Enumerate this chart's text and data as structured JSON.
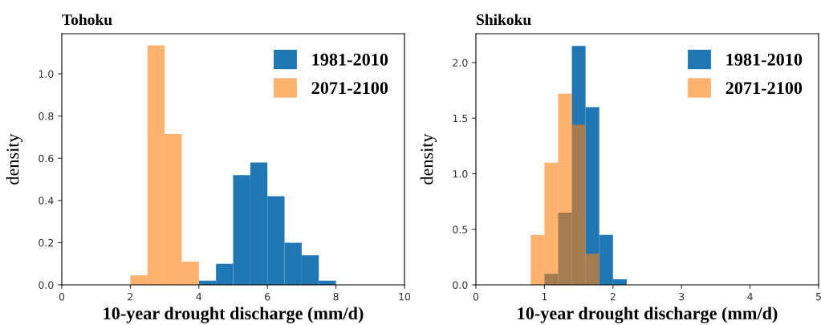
{
  "chart_data": [
    {
      "type": "histogram",
      "title": "Tohoku",
      "xlabel": "10-year drought discharge (mm/d)",
      "ylabel": "density",
      "xlim": [
        0,
        10
      ],
      "xticks": [
        0,
        2,
        4,
        6,
        8,
        10
      ],
      "ylim": [
        0,
        1.19
      ],
      "yticks": [
        {
          "value": 0,
          "label": "0.0"
        },
        0.2,
        0.4,
        0.6,
        0.8,
        {
          "value": 1,
          "label": "1.0"
        }
      ],
      "legend": "top right",
      "grid": false,
      "bins": [
        2,
        2.5,
        3,
        3.5,
        4,
        4.5,
        5,
        5.5,
        6,
        6.5,
        7,
        7.5,
        8
      ],
      "series": [
        {
          "name": "1981-2010",
          "color": "#1f77b4",
          "values": [
            null,
            null,
            null,
            null,
            0.02,
            0.1,
            0.52,
            0.58,
            0.42,
            0.2,
            0.14,
            0.02
          ]
        },
        {
          "name": "2071-2100",
          "color": "#ffb26e",
          "values": [
            0.045,
            1.135,
            0.715,
            0.11,
            null,
            null,
            null,
            null,
            null,
            null,
            null,
            null
          ]
        }
      ]
    },
    {
      "type": "histogram",
      "title": "Shikoku",
      "xlabel": "10-year drought discharge (mm/d)",
      "ylabel": "density",
      "xlim": [
        0,
        5
      ],
      "xticks": [
        0,
        1,
        2,
        3,
        4,
        5
      ],
      "ylim": [
        0,
        2.26
      ],
      "yticks": [
        {
          "value": 0,
          "label": "0.0"
        },
        0.5,
        {
          "value": 1,
          "label": "1.0"
        },
        1.5,
        {
          "value": 2,
          "label": "2.0"
        }
      ],
      "legend": "top right",
      "grid": false,
      "bins": [
        0.8,
        1.0,
        1.2,
        1.4,
        1.6,
        1.8,
        2.0,
        2.2
      ],
      "series": [
        {
          "name": "1981-2010",
          "color": "#1f77b4",
          "values": [
            null,
            0.1,
            0.65,
            2.15,
            1.6,
            0.45,
            0.05
          ]
        },
        {
          "name": "2071-2100",
          "color": "#ffb26e",
          "values": [
            0.45,
            1.1,
            1.72,
            1.44,
            0.28,
            null,
            null
          ]
        }
      ]
    }
  ]
}
